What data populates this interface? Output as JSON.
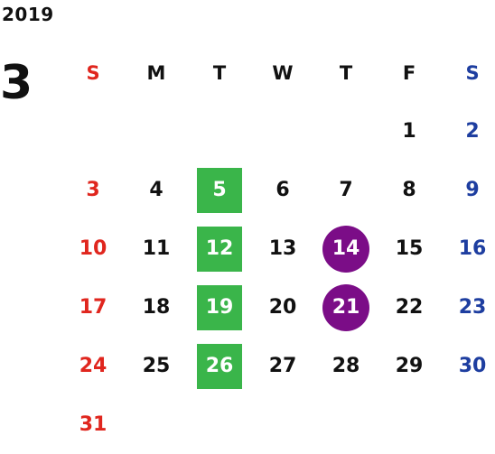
{
  "calendar": {
    "year": "2019",
    "month": "3",
    "weekdays": [
      "S",
      "M",
      "T",
      "W",
      "T",
      "F",
      "S"
    ],
    "weeks": [
      [
        "",
        "",
        "",
        "",
        "",
        "1",
        "2"
      ],
      [
        "3",
        "4",
        "5",
        "6",
        "7",
        "8",
        "9"
      ],
      [
        "10",
        "11",
        "12",
        "13",
        "14",
        "15",
        "16"
      ],
      [
        "17",
        "18",
        "19",
        "20",
        "21",
        "22",
        "23"
      ],
      [
        "24",
        "25",
        "26",
        "27",
        "28",
        "29",
        "30"
      ],
      [
        "31",
        "",
        "",
        "",
        "",
        "",
        ""
      ]
    ],
    "highlighted_green": [
      "5",
      "12",
      "19",
      "26"
    ],
    "highlighted_purple": [
      "14",
      "21"
    ]
  },
  "colors": {
    "sunday": "#e0261e",
    "saturday": "#1e3ea0",
    "weekday": "#111111",
    "green_highlight": "#3ab54a",
    "purple_highlight": "#7b0d87"
  }
}
